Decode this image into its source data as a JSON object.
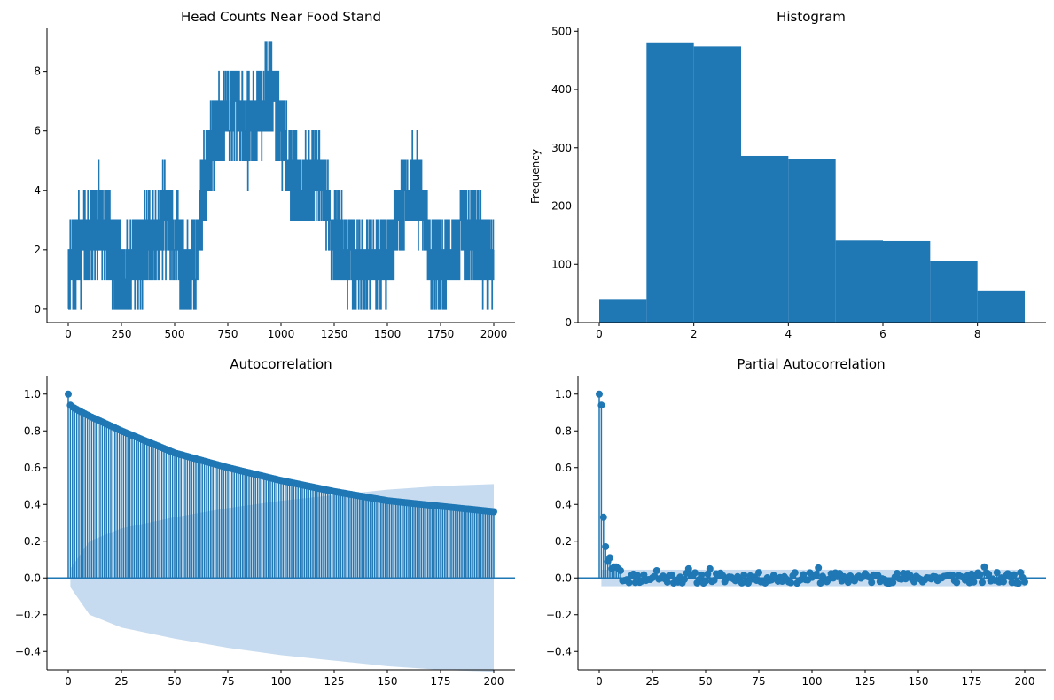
{
  "colors": {
    "series": "#1f77b4",
    "band": "#c6dbef",
    "axis": "#000000"
  },
  "chart_data": [
    {
      "id": "line",
      "type": "line",
      "title": "Head Counts Near Food Stand",
      "xlabel": "",
      "ylabel": "",
      "xlim": [
        -100,
        2100
      ],
      "ylim": [
        -0.45,
        9.45
      ],
      "xticks": [
        0,
        250,
        500,
        750,
        1000,
        1250,
        1500,
        1750,
        2000
      ],
      "yticks": [
        0,
        2,
        4,
        6,
        8
      ],
      "grid": false,
      "n_points": 2000,
      "level_profile": [
        [
          0,
          1
        ],
        [
          50,
          2
        ],
        [
          100,
          2.5
        ],
        [
          150,
          3
        ],
        [
          200,
          2
        ],
        [
          250,
          1
        ],
        [
          300,
          1.5
        ],
        [
          350,
          2
        ],
        [
          400,
          2.5
        ],
        [
          450,
          3
        ],
        [
          500,
          2.5
        ],
        [
          550,
          1
        ],
        [
          600,
          1.5
        ],
        [
          650,
          5
        ],
        [
          700,
          6
        ],
        [
          750,
          6.5
        ],
        [
          800,
          6.5
        ],
        [
          850,
          6
        ],
        [
          900,
          7
        ],
        [
          950,
          7.5
        ],
        [
          1000,
          6
        ],
        [
          1050,
          4.5
        ],
        [
          1100,
          4
        ],
        [
          1150,
          4.5
        ],
        [
          1200,
          4
        ],
        [
          1250,
          2.5
        ],
        [
          1300,
          2
        ],
        [
          1350,
          1.5
        ],
        [
          1400,
          1.5
        ],
        [
          1450,
          1.5
        ],
        [
          1500,
          2
        ],
        [
          1550,
          3
        ],
        [
          1600,
          4
        ],
        [
          1650,
          4
        ],
        [
          1700,
          2
        ],
        [
          1750,
          1.5
        ],
        [
          1800,
          2
        ],
        [
          1850,
          2.5
        ],
        [
          1900,
          2.5
        ],
        [
          1950,
          2
        ],
        [
          2000,
          1.5
        ]
      ]
    },
    {
      "id": "hist",
      "type": "bar",
      "title": "Histogram",
      "xlabel": "",
      "ylabel": "Frequency",
      "xlim": [
        -0.45,
        9.45
      ],
      "ylim": [
        0,
        505
      ],
      "xticks": [
        0,
        2,
        4,
        6,
        8
      ],
      "yticks": [
        0,
        100,
        200,
        300,
        400,
        500
      ],
      "bin_edges": [
        0,
        1,
        2,
        3,
        4,
        5,
        6,
        7,
        8,
        9
      ],
      "values": [
        39,
        481,
        474,
        286,
        280,
        141,
        140,
        106,
        55
      ],
      "grid": false
    },
    {
      "id": "acf",
      "type": "scatter",
      "title": "Autocorrelation",
      "xlabel": "",
      "ylabel": "",
      "xlim": [
        -10,
        210
      ],
      "ylim": [
        -0.5,
        1.1
      ],
      "xticks": [
        0,
        25,
        50,
        75,
        100,
        125,
        150,
        175,
        200
      ],
      "yticks": [
        -0.4,
        -0.2,
        0.0,
        0.2,
        0.4,
        0.6,
        0.8,
        1.0
      ],
      "lags": 200,
      "acf_anchors": [
        [
          0,
          1.0
        ],
        [
          1,
          0.94
        ],
        [
          2,
          0.93
        ],
        [
          5,
          0.91
        ],
        [
          10,
          0.88
        ],
        [
          25,
          0.8
        ],
        [
          50,
          0.68
        ],
        [
          75,
          0.6
        ],
        [
          100,
          0.53
        ],
        [
          125,
          0.47
        ],
        [
          150,
          0.42
        ],
        [
          175,
          0.39
        ],
        [
          200,
          0.36
        ]
      ],
      "confidence_band": [
        [
          1,
          0.05
        ],
        [
          10,
          0.2
        ],
        [
          25,
          0.27
        ],
        [
          50,
          0.33
        ],
        [
          75,
          0.38
        ],
        [
          100,
          0.42
        ],
        [
          125,
          0.45
        ],
        [
          150,
          0.48
        ],
        [
          175,
          0.5
        ],
        [
          200,
          0.51
        ]
      ],
      "grid": false
    },
    {
      "id": "pacf",
      "type": "scatter",
      "title": "Partial Autocorrelation",
      "xlabel": "",
      "ylabel": "",
      "xlim": [
        -10,
        210
      ],
      "ylim": [
        -0.5,
        1.1
      ],
      "xticks": [
        0,
        25,
        50,
        75,
        100,
        125,
        150,
        175,
        200
      ],
      "yticks": [
        -0.4,
        -0.2,
        0.0,
        0.2,
        0.4,
        0.6,
        0.8,
        1.0
      ],
      "lags": 200,
      "pacf_leading": [
        1.0,
        0.94,
        0.33,
        0.17,
        0.09,
        0.11,
        0.05,
        0.06,
        0.06,
        0.05,
        0.04
      ],
      "pacf_noise_amplitude": 0.03,
      "pacf_marked": [
        [
          27,
          0.04
        ],
        [
          42,
          0.05
        ],
        [
          52,
          0.05
        ],
        [
          103,
          0.055
        ],
        [
          181,
          0.06
        ]
      ],
      "confidence_band_halfwidth": 0.045,
      "grid": false
    }
  ]
}
